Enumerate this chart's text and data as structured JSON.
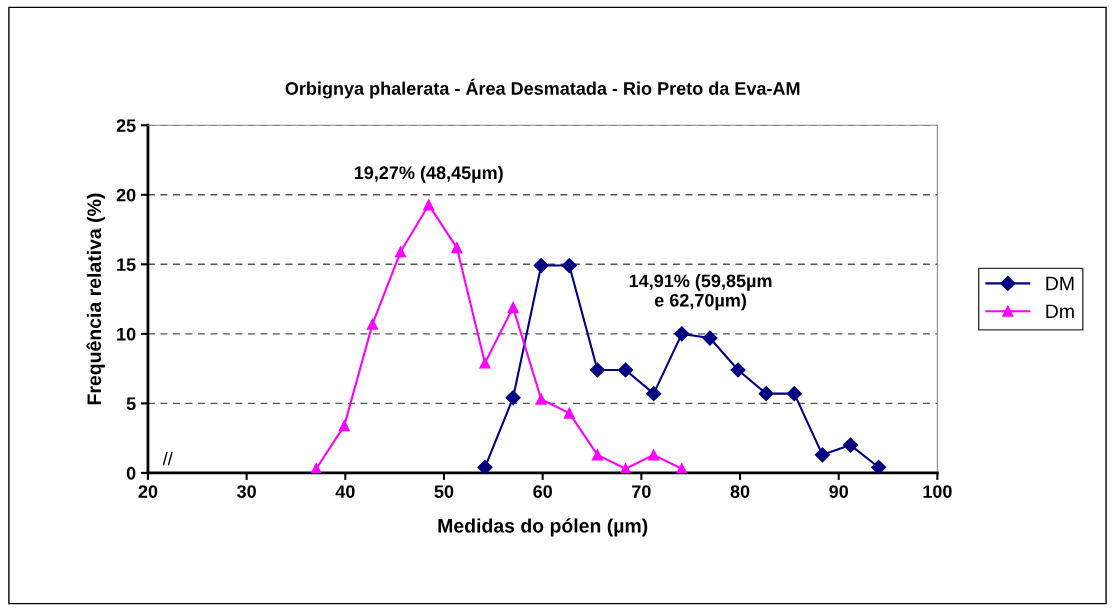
{
  "chart_data": {
    "type": "line",
    "title": "Orbignya phalerata - Área Desmatada - Rio Preto da Eva-AM",
    "xlabel": "Medidas do pólen (µm)",
    "ylabel": "Frequência relativa (%)",
    "xlim": [
      20,
      100
    ],
    "xticks": [
      20,
      30,
      40,
      50,
      60,
      70,
      80,
      90,
      100
    ],
    "ylim": [
      0,
      25
    ],
    "yticks": [
      0,
      5,
      10,
      15,
      20,
      25
    ],
    "grid": "y",
    "legend": "right",
    "line_style": "solid",
    "series": [
      {
        "name": "DM",
        "color": "#000080",
        "marker": "diamond",
        "x": [
          54.15,
          57.0,
          59.85,
          62.7,
          65.55,
          68.4,
          71.25,
          74.1,
          76.95,
          79.8,
          82.65,
          85.5,
          88.35,
          91.2,
          94.05
        ],
        "values": [
          0.4,
          5.4,
          14.91,
          14.91,
          7.4,
          7.4,
          5.7,
          10.0,
          9.7,
          7.4,
          5.7,
          5.7,
          1.3,
          2.0,
          0.4
        ]
      },
      {
        "name": "Dm",
        "color": "#ff00ff",
        "marker": "triangle",
        "x": [
          37.05,
          39.9,
          42.75,
          45.6,
          48.45,
          51.3,
          54.15,
          57.0,
          59.85,
          62.7,
          65.55,
          68.4,
          71.25,
          74.1
        ],
        "values": [
          0.3,
          3.4,
          10.7,
          15.9,
          19.27,
          16.2,
          7.9,
          11.9,
          5.3,
          4.3,
          1.3,
          0.3,
          1.3,
          0.3
        ]
      }
    ],
    "annotations": [
      {
        "text": "19,27% (48,45µm)",
        "x": 48.45,
        "y": 19.27
      },
      "14,91% (59,85µm\ne 62,70µm)",
      "//"
    ]
  }
}
